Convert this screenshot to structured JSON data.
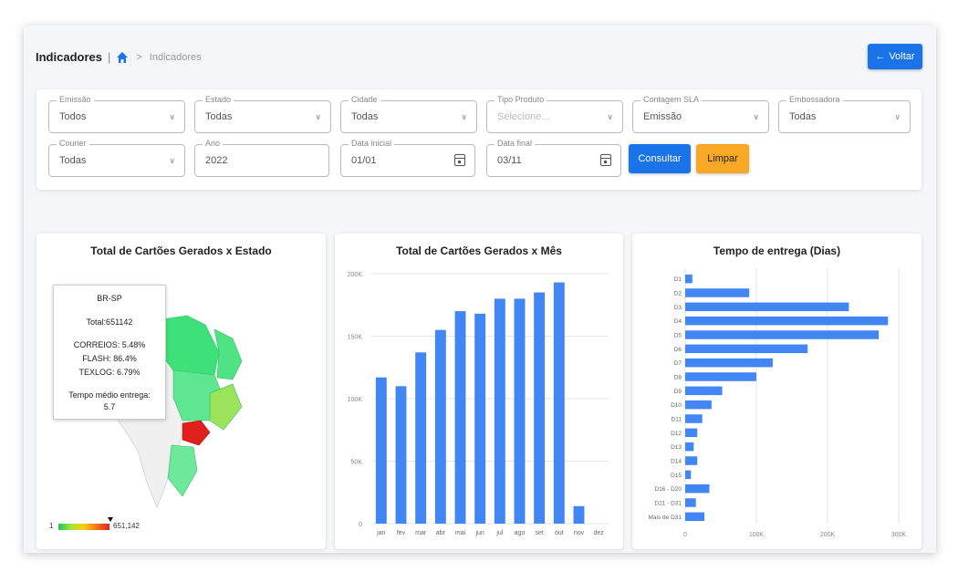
{
  "breadcrumb": {
    "title": "Indicadores",
    "separator": "|",
    "chevron": ">",
    "current": "Indicadores"
  },
  "voltar": {
    "arrow": "←",
    "label": "Voltar"
  },
  "filters": {
    "emissao": {
      "label": "Emissão",
      "value": "Todos"
    },
    "estado": {
      "label": "Estado",
      "value": "Todas"
    },
    "cidade": {
      "label": "Cidade",
      "value": "Todas"
    },
    "tipo_produto": {
      "label": "Tipo Produto",
      "placeholder": "Selecione..."
    },
    "contagem_sla": {
      "label": "Contagem SLA",
      "value": "Emissão"
    },
    "embossadora": {
      "label": "Embossadora",
      "value": "Todas"
    },
    "courier": {
      "label": "Courier",
      "value": "Todas"
    },
    "ano": {
      "label": "Ano",
      "value": "2022"
    },
    "data_inicial": {
      "label": "Data inicial",
      "value": "01/01"
    },
    "data_final": {
      "label": "Data final",
      "value": "03/11"
    },
    "consultar": "Consultar",
    "limpar": "Limpar"
  },
  "map_card": {
    "title": "Total de Cartões Gerados x Estado",
    "tooltip": {
      "state": "BR-SP",
      "total": "Total:651142",
      "correios": "CORREIOS: 5.48%",
      "flash": "FLASH: 86.4%",
      "texlog": "TEXLOG: 6.79%",
      "tempo_label": "Tempo médio entrega:",
      "tempo_value": "5.7"
    },
    "legend_min": "1",
    "legend_max": "651,142",
    "colors": {
      "highlight": "#e0201b",
      "low": "#3ee07a",
      "mid": "#9be35a",
      "other_country": "#f0f0f0"
    }
  },
  "chart_data": [
    {
      "type": "bar",
      "title": "Total de Cartões Gerados x Mês",
      "categories": [
        "jan",
        "fev",
        "mar",
        "abr",
        "mai",
        "jun",
        "jul",
        "ago",
        "set",
        "out",
        "nov",
        "dez"
      ],
      "values": [
        117000,
        110000,
        137000,
        155000,
        170000,
        168000,
        180000,
        180000,
        185000,
        193000,
        14000,
        0
      ],
      "ylim": [
        0,
        200000
      ],
      "yticks": [
        "0",
        "50K",
        "100K",
        "150K",
        "200K"
      ],
      "color": "#4285f4",
      "grid": true
    },
    {
      "type": "bar",
      "orientation": "horizontal",
      "title": "Tempo de entrega (Dias)",
      "categories": [
        "D1",
        "D2",
        "D3",
        "D4",
        "D5",
        "D6",
        "D7",
        "D8",
        "D9",
        "D10",
        "D11",
        "D12",
        "D13",
        "D14",
        "D15",
        "D16 - D20",
        "D21 - D31",
        "Mais de D31"
      ],
      "values": [
        10000,
        90000,
        230000,
        285000,
        272000,
        172000,
        123000,
        100000,
        52000,
        37000,
        24000,
        17000,
        12000,
        17000,
        8000,
        34000,
        15000,
        27000
      ],
      "xlim": [
        0,
        300000
      ],
      "xticks": [
        "0",
        "100K",
        "200K",
        "300K"
      ],
      "color": "#4285f4",
      "grid": true
    }
  ]
}
